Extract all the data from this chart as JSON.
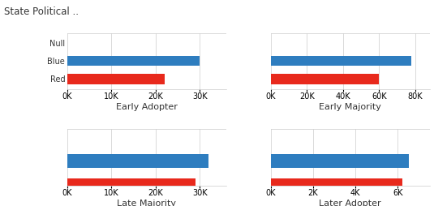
{
  "title": "State Political ..",
  "subplots": [
    {
      "label": "Early Adopter",
      "categories": [
        "Null",
        "Blue",
        "Red"
      ],
      "values": [
        0,
        30000,
        22000
      ],
      "xlim": [
        0,
        36000
      ],
      "xticks": [
        0,
        10000,
        20000,
        30000
      ],
      "show_null": true,
      "show_yticks": true
    },
    {
      "label": "Early Majority",
      "categories": [
        "Null",
        "Blue",
        "Red"
      ],
      "values": [
        0,
        78000,
        60000
      ],
      "xlim": [
        0,
        88000
      ],
      "xticks": [
        0,
        20000,
        40000,
        60000,
        80000
      ],
      "show_null": true,
      "show_yticks": false
    },
    {
      "label": "Late Majority",
      "categories": [
        "Null",
        "Blue",
        "Red"
      ],
      "values": [
        0,
        32000,
        29000
      ],
      "xlim": [
        0,
        36000
      ],
      "xticks": [
        0,
        10000,
        20000,
        30000
      ],
      "show_null": false,
      "show_yticks": false
    },
    {
      "label": "Later Adopter",
      "categories": [
        "Null",
        "Blue",
        "Red"
      ],
      "values": [
        0,
        6500,
        6200
      ],
      "xlim": [
        0,
        7500
      ],
      "xticks": [
        0,
        2000,
        4000,
        6000
      ],
      "show_null": false,
      "show_yticks": false
    }
  ],
  "blue_color": "#2e7dbf",
  "red_color": "#e8291c",
  "null_color": "#aaaaaa",
  "bar_height": 0.55,
  "title_fontsize": 8.5,
  "tick_fontsize": 7,
  "xlabel_fontsize": 8,
  "background_color": "#ffffff",
  "grid_color": "#cccccc"
}
